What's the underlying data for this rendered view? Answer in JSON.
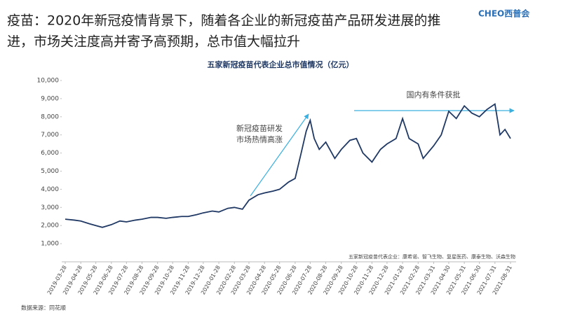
{
  "header": {
    "title_lines": [
      "疫苗：2020年新冠疫情背景下，随着各企业的新冠疫苗产品研发进展的推",
      "进，市场关注度高并寄予高预期，总市值大幅拉升"
    ],
    "logo": "CHEO西普会"
  },
  "chart_data": {
    "type": "line",
    "title": "五家新冠疫苗代表企业总市值情况（亿元）",
    "annotations": [
      "新冠疫苗研发",
      "市场热情高涨",
      "国内有条件获批"
    ],
    "note": "五家新冠疫苗代表企业：康希诺、智飞生物、复星医药、康泰生物、沃森生物",
    "source": "数据来源：同花顺",
    "series": [
      {
        "name": "总市值",
        "color": "#1f3864",
        "x": [
          "2019-03-28",
          "2019-04-15",
          "2019-04-28",
          "2019-05-15",
          "2019-05-28",
          "2019-06-10",
          "2019-06-28",
          "2019-07-15",
          "2019-07-28",
          "2019-08-15",
          "2019-08-28",
          "2019-09-15",
          "2019-09-28",
          "2019-10-15",
          "2019-10-28",
          "2019-11-15",
          "2019-11-28",
          "2019-12-15",
          "2019-12-28",
          "2020-01-15",
          "2020-01-28",
          "2020-02-15",
          "2020-02-28",
          "2020-03-15",
          "2020-03-28",
          "2020-04-15",
          "2020-04-28",
          "2020-05-15",
          "2020-05-28",
          "2020-06-15",
          "2020-06-28",
          "2020-07-10",
          "2020-07-20",
          "2020-07-28",
          "2020-08-05",
          "2020-08-15",
          "2020-08-28",
          "2020-09-15",
          "2020-09-28",
          "2020-10-15",
          "2020-10-28",
          "2020-11-10",
          "2020-11-28",
          "2020-12-15",
          "2020-12-28",
          "2021-01-15",
          "2021-01-28",
          "2021-02-10",
          "2021-02-28",
          "2021-03-10",
          "2021-03-31",
          "2021-04-15",
          "2021-04-30",
          "2021-05-15",
          "2021-05-31",
          "2021-06-15",
          "2021-06-30",
          "2021-07-15",
          "2021-07-31",
          "2021-08-10",
          "2021-08-20",
          "2021-08-31"
        ],
        "values": [
          2350,
          2300,
          2250,
          2100,
          2000,
          1900,
          2050,
          2250,
          2200,
          2300,
          2350,
          2450,
          2450,
          2400,
          2450,
          2500,
          2500,
          2600,
          2700,
          2800,
          2750,
          2950,
          3000,
          2900,
          3400,
          3700,
          3800,
          3900,
          4000,
          4400,
          4600,
          6000,
          7200,
          7800,
          6800,
          6200,
          6600,
          5700,
          6200,
          6700,
          6800,
          6000,
          5500,
          6200,
          6500,
          6800,
          7900,
          6800,
          6500,
          5700,
          6400,
          7000,
          8300,
          7900,
          8600,
          8200,
          8000,
          8400,
          8700,
          7000,
          7300,
          6800
        ]
      }
    ],
    "xticks": [
      "2019-03-28",
      "2019-04-28",
      "2019-05-28",
      "2019-06-28",
      "2019-07-28",
      "2019-08-28",
      "2019-09-28",
      "2019-10-28",
      "2019-11-28",
      "2019-12-28",
      "2020-01-28",
      "2020-02-28",
      "2020-03-28",
      "2020-04-28",
      "2020-05-28",
      "2020-06-28",
      "2020-07-28",
      "2020-08-28",
      "2020-09-28",
      "2020-10-28",
      "2020-11-28",
      "2020-12-28",
      "2021-01-28",
      "2021-02-28",
      "2021-03-31",
      "2021-04-30",
      "2021-05-31",
      "2021-06-30",
      "2021-07-31",
      "2021-08-31"
    ],
    "ylim": [
      0,
      10000
    ],
    "yticks": [
      {
        "value": 1000,
        "label": "1,000"
      },
      {
        "value": 2000,
        "label": "2,000"
      },
      {
        "value": 3000,
        "label": "3,000"
      },
      {
        "value": 4000,
        "label": "4,000"
      },
      {
        "value": 5000,
        "label": "5,000"
      },
      {
        "value": 6000,
        "label": "6,000"
      },
      {
        "value": 7000,
        "label": "7,000"
      },
      {
        "value": 8000,
        "label": "8,000"
      },
      {
        "value": 9000,
        "label": "9,000"
      },
      {
        "value": 10000,
        "label": "10,000"
      }
    ]
  }
}
